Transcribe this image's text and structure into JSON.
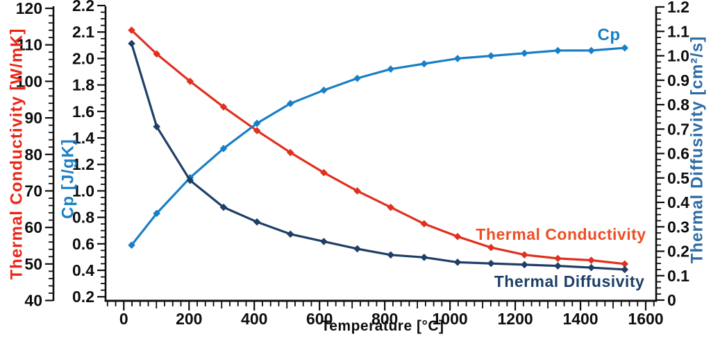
{
  "chart_data": {
    "type": "line",
    "xlabel": "Temperature [°C]",
    "x_tick_labels": [
      "0",
      "200",
      "400",
      "600",
      "800",
      "1000",
      "1200",
      "1400",
      "1600"
    ],
    "x_ticks": [
      0,
      200,
      400,
      600,
      800,
      1000,
      1200,
      1400,
      1600
    ],
    "x_minor_step": 25,
    "x_range": [
      -55,
      1635
    ],
    "grid": false,
    "background_color": "#ffffff",
    "text_color": "#0d0d0d",
    "x": [
      25,
      100,
      200,
      300,
      400,
      500,
      600,
      700,
      800,
      900,
      1000,
      1100,
      1200,
      1300,
      1400,
      1500
    ],
    "series": [
      {
        "name": "Thermal Conductivity",
        "axis": "conductivity",
        "color": "#e0301e",
        "marker": "diamond",
        "values": [
          114,
          107.5,
          100,
          93,
          86.5,
          80.5,
          75,
          70,
          65.5,
          61,
          57.5,
          54.5,
          52.5,
          51.5,
          51,
          50
        ]
      },
      {
        "name": "Cp",
        "axis": "cp",
        "color": "#187fc6",
        "marker": "diamond",
        "values": [
          0.59,
          0.83,
          1.1,
          1.32,
          1.51,
          1.66,
          1.76,
          1.85,
          1.92,
          1.96,
          2.0,
          2.01,
          2.02,
          2.03,
          2.03,
          2.04
        ]
      },
      {
        "name": "Thermal Diffusivity",
        "axis": "diffusivity",
        "color": "#1e3f66",
        "marker": "diamond",
        "values": [
          1.05,
          0.71,
          0.49,
          0.38,
          0.32,
          0.27,
          0.24,
          0.21,
          0.185,
          0.175,
          0.155,
          0.15,
          0.145,
          0.14,
          0.133,
          0.125
        ]
      }
    ],
    "axes": {
      "conductivity": {
        "label": "Thermal Conductivity [W/mK]",
        "color": "#ea2617",
        "side": "left-outer",
        "range": [
          40,
          120
        ],
        "tick_labels": [
          "120",
          "110",
          "100",
          "90",
          "80",
          "70",
          "60",
          "50",
          "40"
        ],
        "minor_per_interval": 4
      },
      "cp": {
        "label": "Cp [J/gK]",
        "color": "#187fc6",
        "side": "left-inner",
        "range": [
          0.2,
          2.2
        ],
        "tick_labels": [
          "2.2",
          "2.1",
          "2.0",
          "1.8",
          "1.6",
          "1.4",
          "1.2",
          "1.0",
          "0.8",
          "0.6",
          "0.4",
          "0.2"
        ],
        "minor_per_interval": 3,
        "note": "irregular scale: 0.1 steps above 2.0, 0.2 steps below"
      },
      "diffusivity": {
        "label": "Thermal Diffusivity [cm²/s]",
        "color": "#2e6ca6",
        "side": "right",
        "range": [
          0,
          1.2
        ],
        "tick_labels": [
          "1.2",
          "1.1",
          "1.0",
          "0.9",
          "0.8",
          "0.7",
          "0.6",
          "0.5",
          "0.4",
          "0.3",
          "0.2",
          "0.1",
          "0"
        ],
        "minor_per_interval": 3
      }
    },
    "annotations": [
      {
        "text": "Cp",
        "color": "#187fc6",
        "x": 877,
        "y": 50
      },
      {
        "text": "Thermal Conductivity",
        "color": "#ed4f25",
        "x": 808,
        "y": 338
      },
      {
        "text": "Thermal Diffusivity",
        "color": "#1e3f66",
        "x": 820,
        "y": 407
      }
    ]
  }
}
